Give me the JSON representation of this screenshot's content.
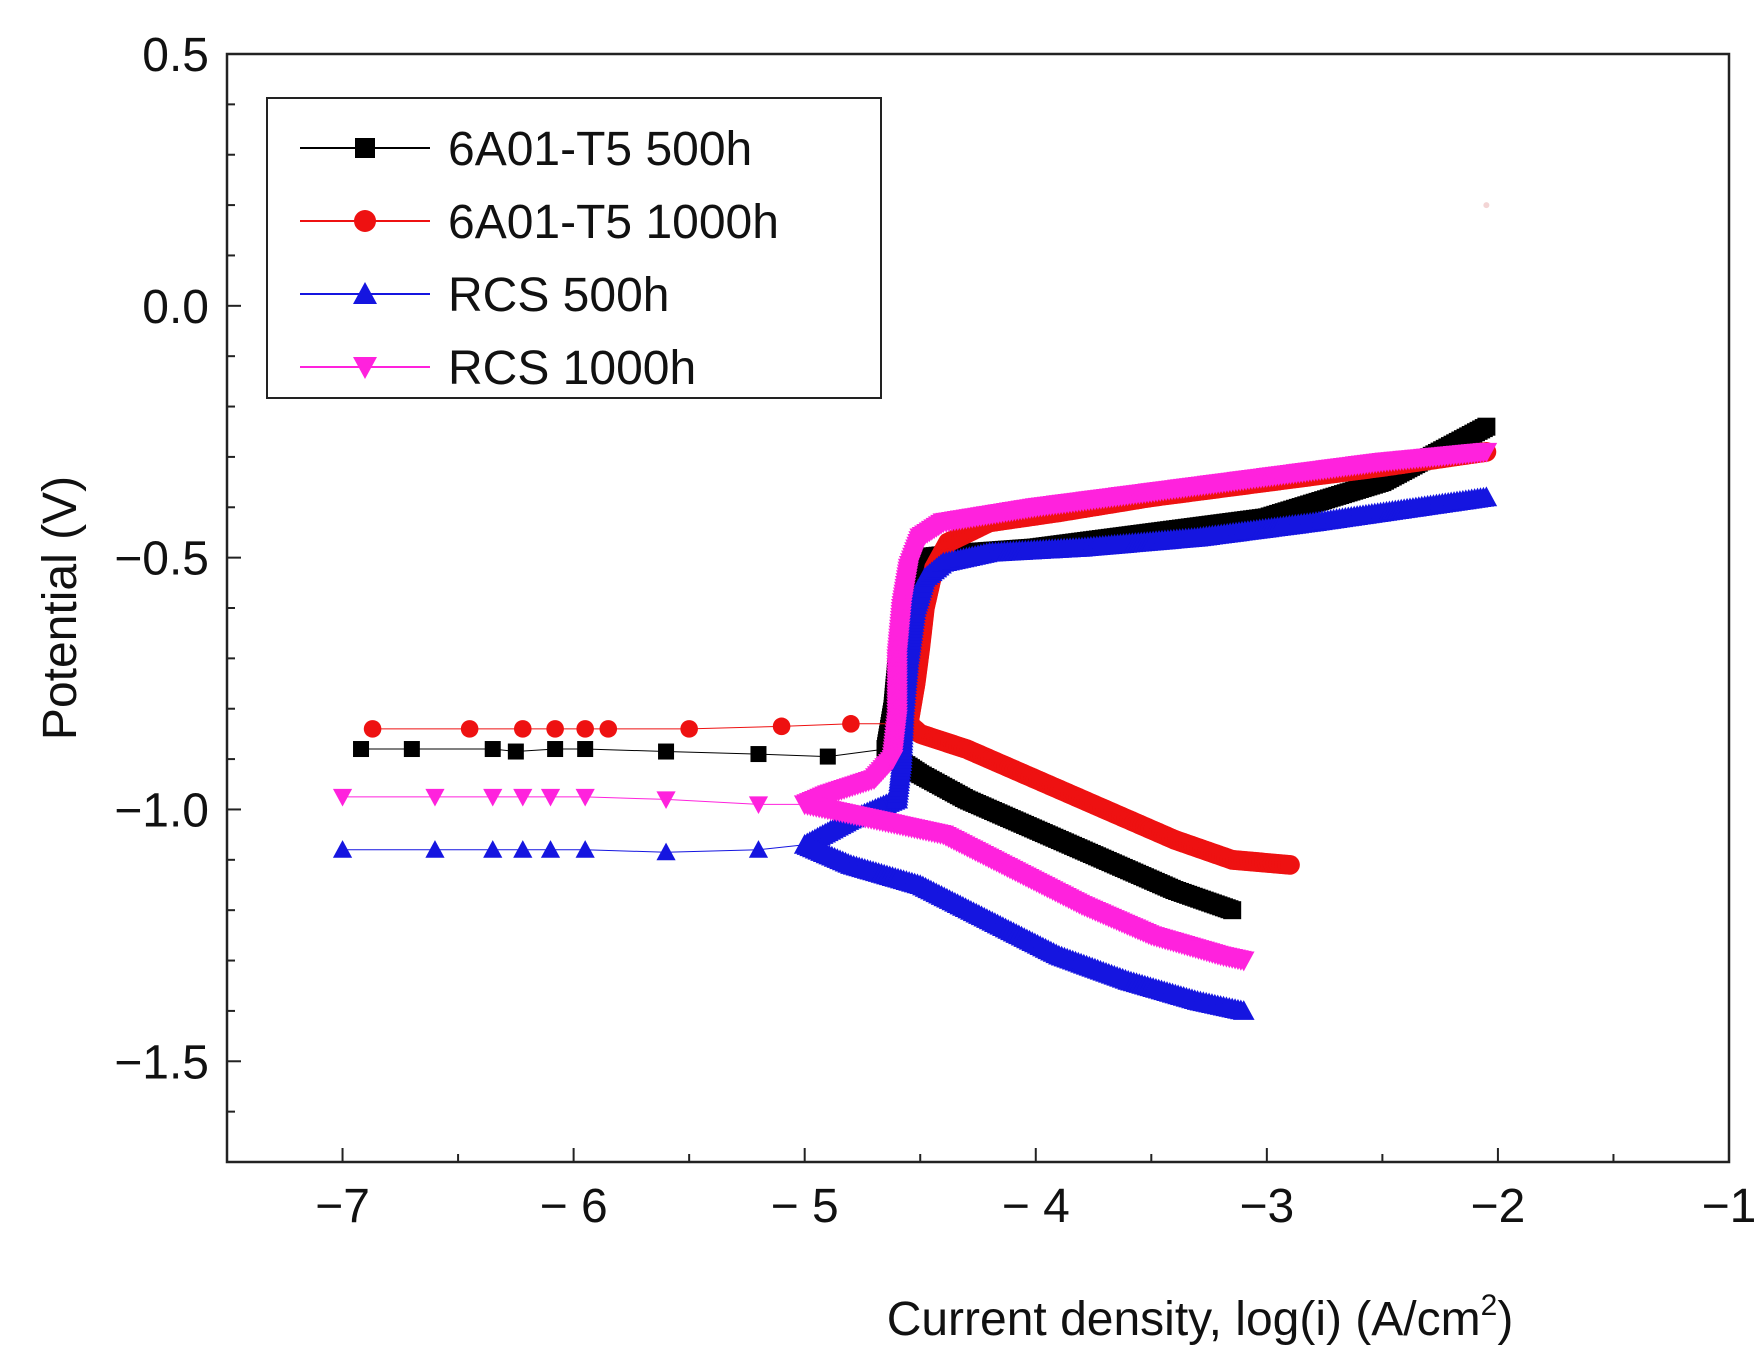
{
  "chart_data": {
    "type": "line",
    "title": "",
    "xlabel": "Current density, log(i)  (A/cm",
    "xlabel_sup": "2",
    "xlabel_close": ")",
    "ylabel": "Potential (V)",
    "xlim": [
      -7.5,
      -1
    ],
    "ylim": [
      -1.7,
      0.5
    ],
    "x_ticks": [
      -7,
      -6,
      -5,
      -4,
      -3,
      -2,
      -1
    ],
    "x_tick_labels": [
      "−7",
      "− 6",
      "− 5",
      "− 4",
      "−3",
      "−2",
      "−1"
    ],
    "x_minor_ticks": [
      -6.5,
      -5.5,
      -4.5,
      -3.5,
      -2.5,
      -1.5
    ],
    "y_ticks": [
      0.5,
      0.0,
      -0.5,
      -1.0,
      -1.5
    ],
    "y_tick_labels": [
      "0.5",
      "0.0",
      "−0.5",
      "−1.0",
      "−1.5"
    ],
    "y_minor_ticks": [
      0.4,
      0.3,
      0.2,
      0.1,
      -0.1,
      -0.2,
      -0.3,
      -0.4,
      -0.6,
      -0.7,
      -0.8,
      -0.9,
      -1.1,
      -1.2,
      -1.3,
      -1.4,
      -1.6
    ],
    "legend_position": "top-left",
    "series": [
      {
        "name": "6A01-T5 500h",
        "color": "#000000",
        "marker": "square",
        "anodic": [
          [
            -4.65,
            -0.88
          ],
          [
            -4.62,
            -0.8
          ],
          [
            -4.6,
            -0.7
          ],
          [
            -4.58,
            -0.6
          ],
          [
            -4.55,
            -0.53
          ],
          [
            -4.5,
            -0.5
          ],
          [
            -4.3,
            -0.49
          ],
          [
            -4.0,
            -0.48
          ],
          [
            -3.5,
            -0.45
          ],
          [
            -3.0,
            -0.42
          ],
          [
            -2.5,
            -0.35
          ],
          [
            -2.05,
            -0.24
          ]
        ],
        "cathodic": [
          [
            -4.65,
            -0.88
          ],
          [
            -4.6,
            -0.9
          ],
          [
            -4.5,
            -0.93
          ],
          [
            -4.3,
            -0.98
          ],
          [
            -4.0,
            -1.04
          ],
          [
            -3.7,
            -1.1
          ],
          [
            -3.4,
            -1.16
          ],
          [
            -3.15,
            -1.2
          ]
        ],
        "passive_flat": [
          [
            -6.92,
            -0.88
          ],
          [
            -6.7,
            -0.88
          ],
          [
            -6.35,
            -0.88
          ],
          [
            -6.25,
            -0.885
          ],
          [
            -6.08,
            -0.88
          ],
          [
            -5.95,
            -0.88
          ],
          [
            -5.6,
            -0.885
          ],
          [
            -5.2,
            -0.89
          ],
          [
            -4.9,
            -0.895
          ],
          [
            -4.65,
            -0.88
          ]
        ]
      },
      {
        "name": "6A01-T5 1000h",
        "color": "#ee1111",
        "marker": "circle",
        "anodic": [
          [
            -4.55,
            -0.83
          ],
          [
            -4.52,
            -0.75
          ],
          [
            -4.5,
            -0.68
          ],
          [
            -4.48,
            -0.6
          ],
          [
            -4.44,
            -0.52
          ],
          [
            -4.38,
            -0.47
          ],
          [
            -4.2,
            -0.43
          ],
          [
            -3.9,
            -0.41
          ],
          [
            -3.5,
            -0.38
          ],
          [
            -3.0,
            -0.35
          ],
          [
            -2.5,
            -0.32
          ],
          [
            -2.05,
            -0.29
          ]
        ],
        "cathodic": [
          [
            -4.55,
            -0.83
          ],
          [
            -4.5,
            -0.85
          ],
          [
            -4.3,
            -0.88
          ],
          [
            -4.0,
            -0.94
          ],
          [
            -3.7,
            -1.0
          ],
          [
            -3.4,
            -1.06
          ],
          [
            -3.15,
            -1.1
          ],
          [
            -2.9,
            -1.11
          ]
        ],
        "passive_flat": [
          [
            -6.87,
            -0.84
          ],
          [
            -6.45,
            -0.84
          ],
          [
            -6.22,
            -0.84
          ],
          [
            -6.08,
            -0.84
          ],
          [
            -5.95,
            -0.84
          ],
          [
            -5.85,
            -0.84
          ],
          [
            -5.5,
            -0.84
          ],
          [
            -5.1,
            -0.835
          ],
          [
            -4.8,
            -0.83
          ],
          [
            -4.55,
            -0.83
          ]
        ]
      },
      {
        "name": "RCS 500h",
        "color": "#1515e0",
        "marker": "triangle-up",
        "anodic": [
          [
            -4.6,
            -0.98
          ],
          [
            -4.58,
            -0.9
          ],
          [
            -4.57,
            -0.8
          ],
          [
            -4.55,
            -0.7
          ],
          [
            -4.52,
            -0.6
          ],
          [
            -4.48,
            -0.54
          ],
          [
            -4.4,
            -0.51
          ],
          [
            -4.2,
            -0.49
          ],
          [
            -3.8,
            -0.48
          ],
          [
            -3.3,
            -0.46
          ],
          [
            -2.8,
            -0.43
          ],
          [
            -2.05,
            -0.38
          ]
        ],
        "cathodic": [
          [
            -4.6,
            -0.98
          ],
          [
            -4.8,
            -1.02
          ],
          [
            -5.0,
            -1.07
          ],
          [
            -4.8,
            -1.11
          ],
          [
            -4.5,
            -1.15
          ],
          [
            -4.2,
            -1.22
          ],
          [
            -3.9,
            -1.29
          ],
          [
            -3.6,
            -1.34
          ],
          [
            -3.3,
            -1.38
          ],
          [
            -3.1,
            -1.4
          ]
        ],
        "passive_flat": [
          [
            -7.0,
            -1.08
          ],
          [
            -6.6,
            -1.08
          ],
          [
            -6.35,
            -1.08
          ],
          [
            -6.22,
            -1.08
          ],
          [
            -6.1,
            -1.08
          ],
          [
            -5.95,
            -1.08
          ],
          [
            -5.6,
            -1.085
          ],
          [
            -5.2,
            -1.08
          ],
          [
            -5.0,
            -1.07
          ]
        ]
      },
      {
        "name": "RCS 1000h",
        "color": "#ff22dd",
        "marker": "triangle-down",
        "anodic": [
          [
            -4.62,
            -0.9
          ],
          [
            -4.6,
            -0.82
          ],
          [
            -4.6,
            -0.7
          ],
          [
            -4.58,
            -0.6
          ],
          [
            -4.55,
            -0.52
          ],
          [
            -4.5,
            -0.46
          ],
          [
            -4.4,
            -0.43
          ],
          [
            -4.0,
            -0.4
          ],
          [
            -3.5,
            -0.37
          ],
          [
            -3.0,
            -0.34
          ],
          [
            -2.5,
            -0.31
          ],
          [
            -2.05,
            -0.29
          ]
        ],
        "cathodic": [
          [
            -4.62,
            -0.9
          ],
          [
            -4.7,
            -0.94
          ],
          [
            -4.9,
            -0.97
          ],
          [
            -5.0,
            -0.99
          ],
          [
            -4.7,
            -1.02
          ],
          [
            -4.4,
            -1.05
          ],
          [
            -4.1,
            -1.12
          ],
          [
            -3.8,
            -1.19
          ],
          [
            -3.5,
            -1.25
          ],
          [
            -3.2,
            -1.29
          ],
          [
            -3.1,
            -1.3
          ]
        ],
        "passive_flat": [
          [
            -7.0,
            -0.975
          ],
          [
            -6.6,
            -0.975
          ],
          [
            -6.35,
            -0.975
          ],
          [
            -6.22,
            -0.975
          ],
          [
            -6.1,
            -0.975
          ],
          [
            -5.95,
            -0.975
          ],
          [
            -5.6,
            -0.98
          ],
          [
            -5.2,
            -0.99
          ],
          [
            -5.0,
            -0.99
          ]
        ]
      }
    ]
  },
  "stray_mark": {
    "x": -2.05,
    "y": 0.2,
    "color": "#f3d5d5"
  }
}
